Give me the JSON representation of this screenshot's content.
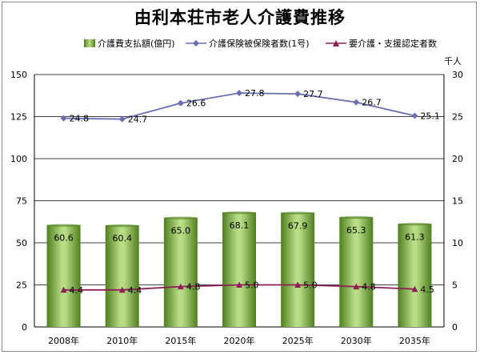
{
  "title": "由利本荘市老人介護費推移",
  "unit_right": "千人",
  "legend": {
    "bar_label": "介護費支払額(億円)",
    "line1_label": "介護保険被保険者数(1号)",
    "line2_label": "要介護・支援認定者数"
  },
  "colors": {
    "bar_light": "#b9dc86",
    "bar_dark": "#4f7f1f",
    "line1": "#6b6fb0",
    "line2": "#8e1f56",
    "grid": "#000000"
  },
  "chart_data": {
    "type": "bar",
    "categories": [
      "2008年",
      "2010年",
      "2015年",
      "2020年",
      "2025年",
      "2030年",
      "2035年"
    ],
    "y_left": {
      "lim": [
        0,
        150
      ],
      "ticks": [
        "0",
        "25",
        "50",
        "75",
        "100",
        "125",
        "150"
      ]
    },
    "y_right": {
      "lim": [
        0,
        30
      ],
      "ticks": [
        "0",
        "5",
        "10",
        "15",
        "20",
        "25",
        "30"
      ],
      "label": "千人"
    },
    "grid": true,
    "legend_position": "top",
    "series": [
      {
        "name": "介護費支払額(億円)",
        "kind": "bar",
        "axis": "left",
        "values": [
          60.6,
          60.4,
          65.0,
          68.1,
          67.9,
          65.3,
          61.3
        ],
        "labels": [
          "60.6",
          "60.4",
          "65.0",
          "68.1",
          "67.9",
          "65.3",
          "61.3"
        ]
      },
      {
        "name": "介護保険被保険者数(1号)",
        "kind": "line",
        "axis": "right",
        "marker": "diamond",
        "values": [
          24.8,
          24.7,
          26.6,
          27.8,
          27.7,
          26.7,
          25.1
        ],
        "labels": [
          "24.8",
          "24.7",
          "26.6",
          "27.8",
          "27.7",
          "26.7",
          "25.1"
        ]
      },
      {
        "name": "要介護・支援認定者数",
        "kind": "line",
        "axis": "right",
        "marker": "triangle",
        "values": [
          4.4,
          4.4,
          4.8,
          5.0,
          5.0,
          4.8,
          4.5
        ],
        "labels": [
          "4.4",
          "4.4",
          "4.8",
          "5.0",
          "5.0",
          "4.8",
          "4.5"
        ]
      }
    ]
  }
}
